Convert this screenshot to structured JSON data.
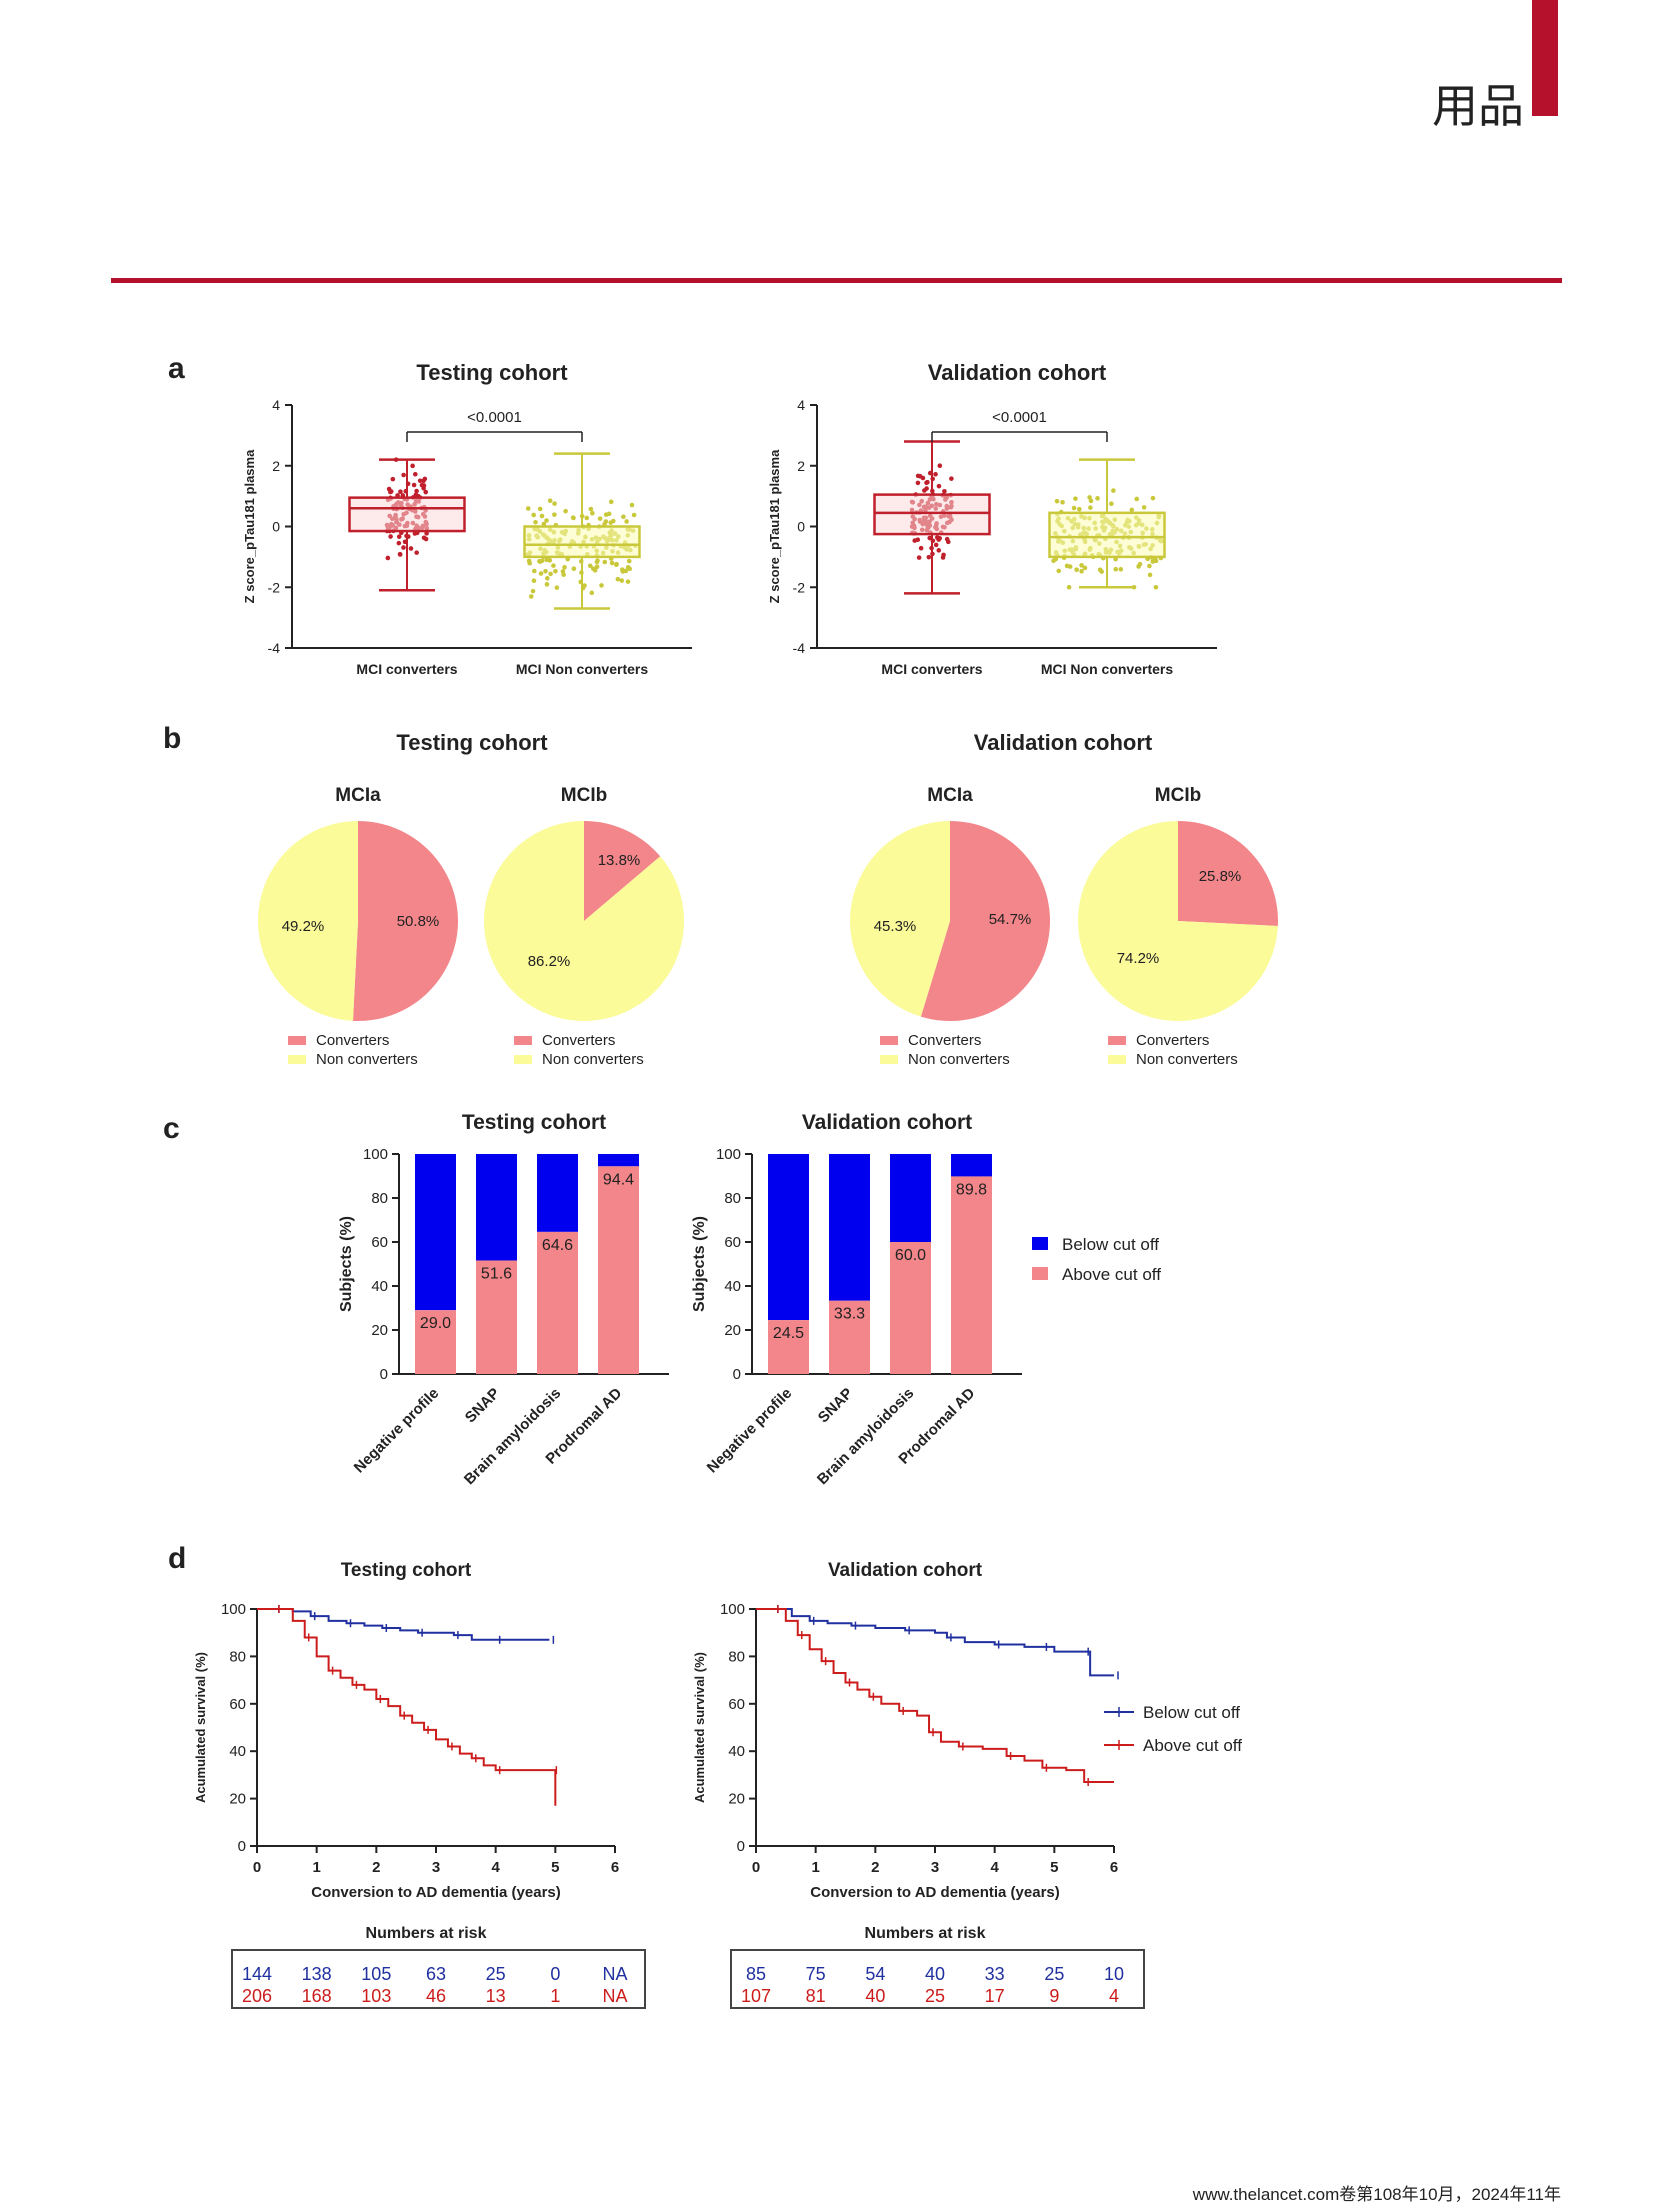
{
  "header": {
    "corner_text": "用品"
  },
  "footer": {
    "text": "www.thelancet.com卷第108年10月，2024年11年"
  },
  "colors": {
    "red_dark": "#c0202c",
    "pink": "#f3868a",
    "pink_light": "#fbd9da",
    "olive": "#c8c83a",
    "yellow_light": "#fbfbb4",
    "yellow": "#fbfb9a",
    "blue": "#0000ee",
    "red_km": "#cc1c1c",
    "navy_km": "#2030a0",
    "accent": "#b5112d"
  },
  "panels": {
    "a": {
      "letter": "a",
      "cohorts": [
        {
          "title": "Testing cohort",
          "ylabel": "Z score_pTau181 plasma",
          "pvalue": "<0.0001"
        },
        {
          "title": "Validation cohort",
          "ylabel": "Z score_pTau181 plasma",
          "pvalue": "<0.0001"
        }
      ]
    },
    "b": {
      "letter": "b",
      "cohorts": [
        {
          "title": "Testing cohort",
          "pies": [
            {
              "title": "MCIa",
              "labels": [
                "50.8%",
                "49.2%"
              ],
              "legend": [
                "Converters",
                "Non converters"
              ]
            },
            {
              "title": "MCIb",
              "labels": [
                "13.8%",
                "86.2%"
              ],
              "legend": [
                "Converters",
                "Non converters"
              ]
            }
          ]
        },
        {
          "title": "Validation cohort",
          "pies": [
            {
              "title": "MCIa",
              "labels": [
                "54.7%",
                "45.3%"
              ],
              "legend": [
                "Converters",
                "Non converters"
              ]
            },
            {
              "title": "MCIb",
              "labels": [
                "25.8%",
                "74.2%"
              ],
              "legend": [
                "Converters",
                "Non converters"
              ]
            }
          ]
        }
      ]
    },
    "c": {
      "letter": "c",
      "ylabel": "Subjects (%)",
      "legend": [
        "Below cut off",
        "Above cut off"
      ],
      "cohorts": [
        {
          "title": "Testing cohort",
          "labels": [
            "29.0",
            "51.6",
            "64.6",
            "94.4"
          ]
        },
        {
          "title": "Validation cohort",
          "labels": [
            "24.5",
            "33.3",
            "60.0",
            "89.8"
          ]
        }
      ]
    },
    "d": {
      "letter": "d",
      "ylabel": "Acumulated survival (%)",
      "xlabel": "Conversion to AD dementia (years)",
      "legend": [
        "Below cut off",
        "Above cut off"
      ],
      "risk_title": "Numbers at risk",
      "cohorts": [
        {
          "title": "Testing cohort",
          "risk_below": [
            "144",
            "138",
            "105",
            "63",
            "25",
            "0",
            "NA"
          ],
          "risk_above": [
            "206",
            "168",
            "103",
            "46",
            "13",
            "1",
            "NA"
          ]
        },
        {
          "title": "Validation cohort",
          "risk_below": [
            "85",
            "75",
            "54",
            "40",
            "33",
            "25",
            "10"
          ],
          "risk_above": [
            "107",
            "81",
            "40",
            "25",
            "17",
            "9",
            "4"
          ]
        }
      ]
    }
  },
  "chart_data": [
    {
      "type": "box",
      "title": "Testing cohort",
      "ylabel": "Z score_pTau181 plasma",
      "ylim": [
        -4,
        4
      ],
      "yticks": [
        "-4",
        "-2",
        "0",
        "2",
        "4"
      ],
      "categories": [
        "MCI converters",
        "MCI Non converters"
      ],
      "boxes": [
        {
          "min": -2.1,
          "q1": -0.15,
          "median": 0.6,
          "q3": 0.95,
          "max": 2.2
        },
        {
          "min": -2.7,
          "q1": -1.0,
          "median": -0.6,
          "q3": 0.0,
          "max": 2.4
        }
      ],
      "annotation": "<0.0001"
    },
    {
      "type": "box",
      "title": "Validation cohort",
      "ylabel": "Z score_pTau181 plasma",
      "ylim": [
        -4,
        4
      ],
      "yticks": [
        "-4",
        "-2",
        "0",
        "2",
        "4"
      ],
      "categories": [
        "MCI converters",
        "MCI Non converters"
      ],
      "boxes": [
        {
          "min": -2.2,
          "q1": -0.25,
          "median": 0.45,
          "q3": 1.05,
          "max": 2.8
        },
        {
          "min": -2.0,
          "q1": -1.0,
          "median": -0.35,
          "q3": 0.45,
          "max": 2.2
        }
      ],
      "annotation": "<0.0001"
    },
    {
      "type": "pie",
      "title": "MCIa",
      "group": "Testing cohort",
      "categories": [
        "Converters",
        "Non converters"
      ],
      "values": [
        50.8,
        49.2
      ]
    },
    {
      "type": "pie",
      "title": "MCIb",
      "group": "Testing cohort",
      "categories": [
        "Converters",
        "Non converters"
      ],
      "values": [
        13.8,
        86.2
      ]
    },
    {
      "type": "pie",
      "title": "MCIa",
      "group": "Validation cohort",
      "categories": [
        "Converters",
        "Non converters"
      ],
      "values": [
        54.7,
        45.3
      ]
    },
    {
      "type": "pie",
      "title": "MCIb",
      "group": "Validation cohort",
      "categories": [
        "Converters",
        "Non converters"
      ],
      "values": [
        25.8,
        74.2
      ]
    },
    {
      "type": "bar",
      "stacked": true,
      "title": "Testing cohort",
      "ylabel": "Subjects (%)",
      "ylim": [
        0,
        100
      ],
      "yticks": [
        "0",
        "20",
        "40",
        "60",
        "80",
        "100"
      ],
      "categories": [
        "Negative profile",
        "SNAP",
        "Brain amyloidosis",
        "Prodromal AD"
      ],
      "series": [
        {
          "name": "Above cut off",
          "values": [
            29.0,
            51.6,
            64.6,
            94.4
          ]
        },
        {
          "name": "Below cut off",
          "values": [
            71.0,
            48.4,
            35.4,
            5.6
          ]
        }
      ]
    },
    {
      "type": "bar",
      "stacked": true,
      "title": "Validation cohort",
      "ylabel": "Subjects (%)",
      "ylim": [
        0,
        100
      ],
      "yticks": [
        "0",
        "20",
        "40",
        "60",
        "80",
        "100"
      ],
      "categories": [
        "Negative profile",
        "SNAP",
        "Brain amyloidosis",
        "Prodromal AD"
      ],
      "series": [
        {
          "name": "Above cut off",
          "values": [
            24.5,
            33.3,
            60.0,
            89.8
          ]
        },
        {
          "name": "Below cut off",
          "values": [
            75.5,
            66.7,
            40.0,
            10.2
          ]
        }
      ]
    },
    {
      "type": "line",
      "step": true,
      "title": "Testing cohort",
      "xlabel": "Conversion to AD dementia (years)",
      "ylabel": "Acumulated survival (%)",
      "xlim": [
        0,
        6
      ],
      "ylim": [
        0,
        100
      ],
      "xticks": [
        "0",
        "1",
        "2",
        "3",
        "4",
        "5",
        "6"
      ],
      "yticks": [
        "0",
        "20",
        "40",
        "60",
        "80",
        "100"
      ],
      "series": [
        {
          "name": "Below cut off",
          "x": [
            0.3,
            0.6,
            0.9,
            1.2,
            1.5,
            1.8,
            2.1,
            2.4,
            2.7,
            3.0,
            3.3,
            3.6,
            4.0,
            4.5,
            4.9
          ],
          "y": [
            100,
            99,
            97,
            95,
            94,
            93,
            92,
            91,
            90,
            90,
            89,
            87,
            87,
            87,
            87
          ]
        },
        {
          "name": "Above cut off",
          "x": [
            0.3,
            0.6,
            0.8,
            1.0,
            1.2,
            1.4,
            1.6,
            1.8,
            2.0,
            2.2,
            2.4,
            2.6,
            2.8,
            3.0,
            3.2,
            3.4,
            3.6,
            3.8,
            4.0,
            4.5,
            4.95,
            5.0
          ],
          "y": [
            100,
            95,
            88,
            80,
            74,
            71,
            68,
            66,
            62,
            59,
            55,
            52,
            49,
            45,
            42,
            39,
            37,
            34,
            32,
            32,
            32,
            17
          ]
        }
      ]
    },
    {
      "type": "line",
      "step": true,
      "title": "Validation cohort",
      "xlabel": "Conversion to AD dementia (years)",
      "ylabel": "Acumulated survival (%)",
      "xlim": [
        0,
        6
      ],
      "ylim": [
        0,
        100
      ],
      "xticks": [
        "0",
        "1",
        "2",
        "3",
        "4",
        "5",
        "6"
      ],
      "yticks": [
        "0",
        "20",
        "40",
        "60",
        "80",
        "100"
      ],
      "series": [
        {
          "name": "Below cut off",
          "x": [
            0.3,
            0.6,
            0.9,
            1.2,
            1.6,
            2.0,
            2.5,
            3.0,
            3.2,
            3.5,
            4.0,
            4.5,
            4.8,
            5.0,
            5.5,
            5.6,
            6.0
          ],
          "y": [
            100,
            97,
            95,
            94,
            93,
            92,
            91,
            90,
            88,
            86,
            85,
            84,
            84,
            82,
            82,
            72,
            72
          ]
        },
        {
          "name": "Above cut off",
          "x": [
            0.3,
            0.5,
            0.7,
            0.9,
            1.1,
            1.3,
            1.5,
            1.7,
            1.9,
            2.1,
            2.4,
            2.7,
            2.9,
            3.1,
            3.4,
            3.8,
            4.2,
            4.5,
            4.8,
            5.2,
            5.5,
            6.0
          ],
          "y": [
            100,
            95,
            89,
            83,
            78,
            73,
            69,
            66,
            63,
            60,
            57,
            55,
            48,
            44,
            42,
            41,
            38,
            36,
            33,
            32,
            27,
            27
          ]
        }
      ]
    }
  ]
}
